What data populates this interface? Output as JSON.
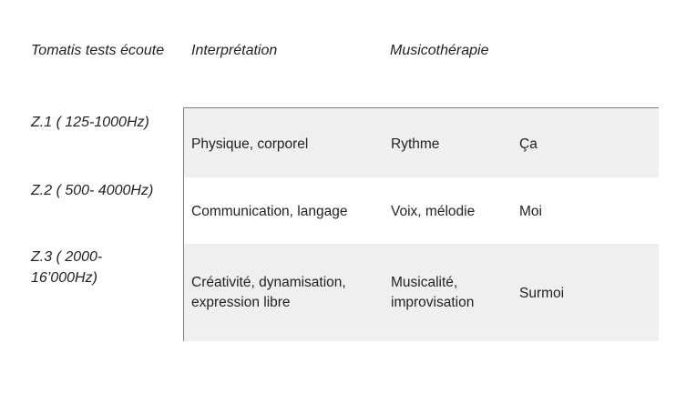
{
  "headers": {
    "col1": "Tomatis tests écoute",
    "col2": "Interprétation",
    "col3": "Musicothérapie"
  },
  "rows": [
    {
      "zone": "Z.1 ( 125-1000Hz)",
      "interpretation": "Physique, corporel",
      "musicotherapie": "Rythme",
      "instance": "Ça"
    },
    {
      "zone": "Z.2 ( 500- 4000Hz)",
      "interpretation": "Communication, langage",
      "musicotherapie": "Voix, mélodie",
      "instance": "Moi"
    },
    {
      "zone": "Z.3 ( 2000- 16’000Hz)",
      "interpretation": "Créativité, dynamisation, expression libre",
      "musicotherapie": "Musicalité, improvisation",
      "instance": "Surmoi"
    }
  ],
  "colors": {
    "band": "#efefef",
    "rule": "#7f7f7f",
    "text": "#222222"
  }
}
